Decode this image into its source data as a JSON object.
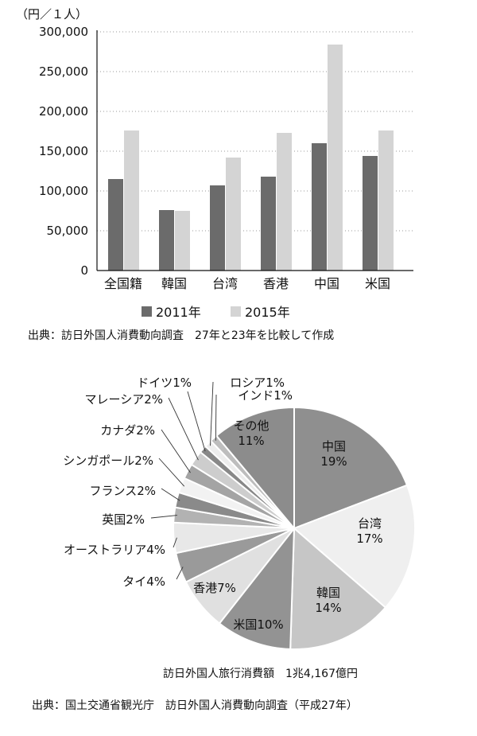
{
  "chart_data": [
    {
      "type": "bar",
      "unit_label": "（円／１人）",
      "categories": [
        "全国籍",
        "韓国",
        "台湾",
        "香港",
        "中国",
        "米国"
      ],
      "series": [
        {
          "name": "2011年",
          "values": [
            115000,
            76000,
            107000,
            118000,
            160000,
            144000
          ]
        },
        {
          "name": "2015年",
          "values": [
            176000,
            75000,
            142000,
            173000,
            284000,
            176000
          ]
        }
      ],
      "y_ticks": [
        "0",
        "50,000",
        "100,000",
        "150,000",
        "200,000",
        "250,000",
        "300,000"
      ],
      "ylim": [
        0,
        300000
      ],
      "colors": [
        "#6b6b6b",
        "#d4d4d4"
      ],
      "grid": "dotted-horizontal",
      "legend_placement": "bottom",
      "source": "出典：訪日外国人消費動向調査　27年と23年を比較して作成"
    },
    {
      "type": "pie",
      "slices": [
        {
          "label": "中国",
          "value": 19,
          "display": "19%",
          "color": "#8f8f8f"
        },
        {
          "label": "台湾",
          "value": 17,
          "display": "17%",
          "color": "#efefef"
        },
        {
          "label": "韓国",
          "value": 14,
          "display": "14%",
          "color": "#c6c6c6"
        },
        {
          "label": "米国",
          "value": 10,
          "display": "米国10%",
          "color": "#939393"
        },
        {
          "label": "香港",
          "value": 7,
          "display": "香港7%",
          "color": "#e0e0e0"
        },
        {
          "label": "タイ",
          "value": 4,
          "display": "タイ4%",
          "color": "#9a9a9a"
        },
        {
          "label": "オーストラリア",
          "value": 4,
          "display": "オーストラリア4%",
          "color": "#e8e8e8"
        },
        {
          "label": "英国",
          "value": 2,
          "display": "英国2%",
          "color": "#b2b2b2"
        },
        {
          "label": "フランス",
          "value": 2,
          "display": "フランス2%",
          "color": "#8a8a8a"
        },
        {
          "label": "シンガポール",
          "value": 2,
          "display": "シンガポール2%",
          "color": "#f2f2f2"
        },
        {
          "label": "カナダ",
          "value": 2,
          "display": "カナダ2%",
          "color": "#a4a4a4"
        },
        {
          "label": "マレーシア",
          "value": 2,
          "display": "マレーシア2%",
          "color": "#cdcdcd"
        },
        {
          "label": "ドイツ",
          "value": 1,
          "display": "ドイツ1%",
          "color": "#888888"
        },
        {
          "label": "ロシア",
          "value": 1,
          "display": "ロシア1%",
          "color": "#ededed"
        },
        {
          "label": "インド",
          "value": 1,
          "display": "インド1%",
          "color": "#bdbdbd"
        },
        {
          "label": "その他",
          "value": 11,
          "display": "11%",
          "color": "#8c8c8c"
        }
      ],
      "total_caption": "訪日外国人旅行消費額　1兆4,167億円",
      "source": "出典：国土交通省観光庁　訪日外国人消費動向調査（平成27年）"
    }
  ]
}
